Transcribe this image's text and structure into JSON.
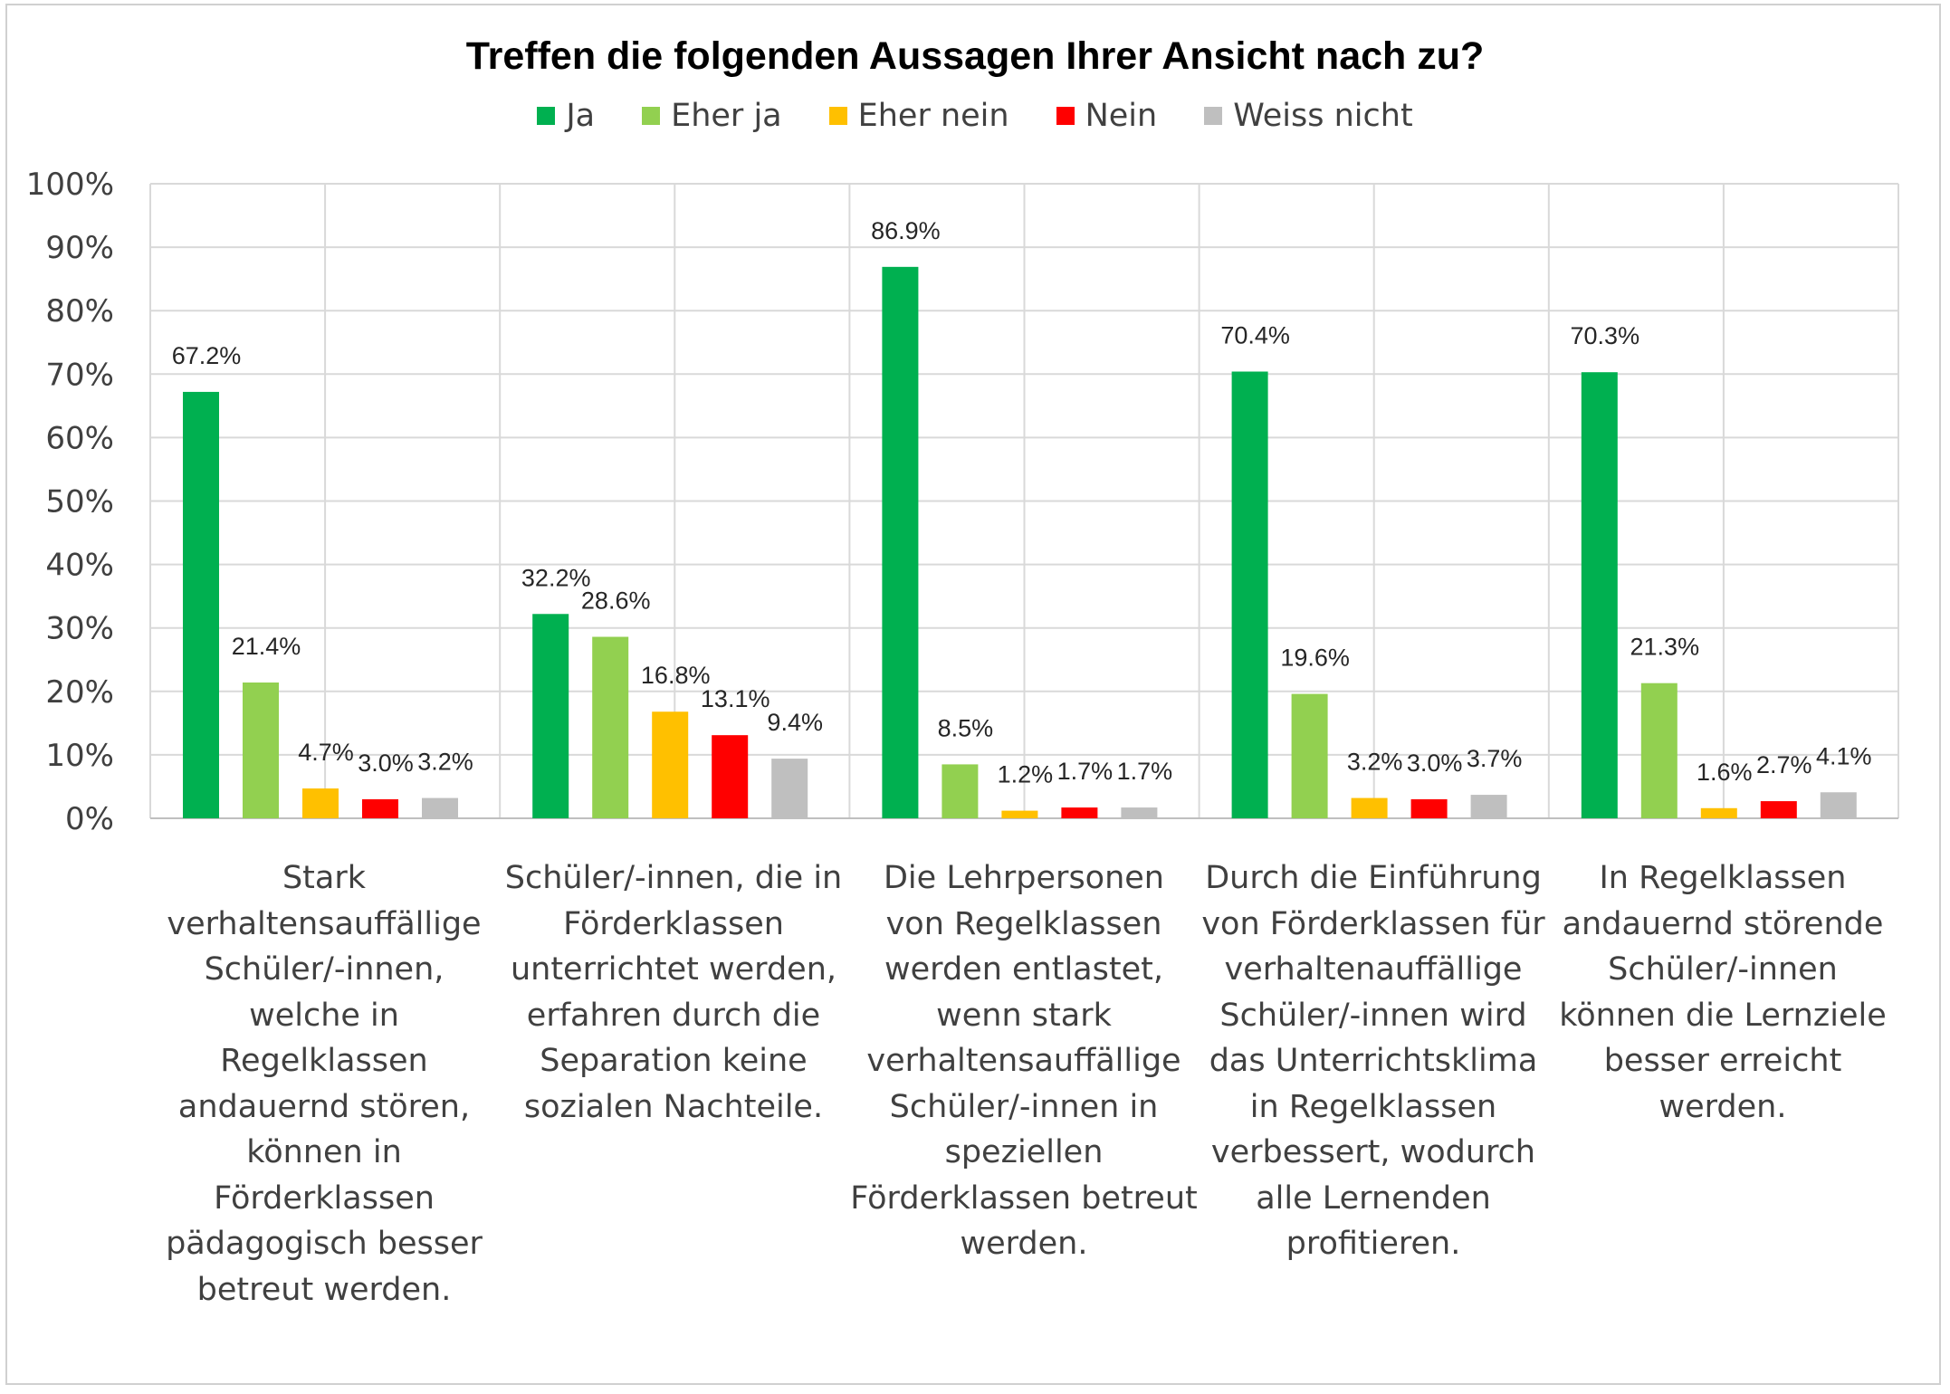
{
  "chart_data": {
    "type": "bar",
    "title": "Treffen die folgenden Aussagen Ihrer Ansicht nach zu?",
    "xlabel": "",
    "ylabel": "",
    "ylim": [
      0,
      100
    ],
    "yticks": [
      "0%",
      "10%",
      "20%",
      "30%",
      "40%",
      "50%",
      "60%",
      "70%",
      "80%",
      "90%",
      "100%"
    ],
    "grid": true,
    "legend_position": "top",
    "categories": [
      "Stark verhaltensauffällige Schüler/-innen, welche in Regelklassen andauernd stören, können in Förderklassen pädagogisch besser betreut werden.",
      "Schüler/-innen, die in Förderklassen unterrichtet werden, erfahren durch die Separation keine sozialen Nachteile.",
      "Die Lehrpersonen von Regelklassen werden entlastet, wenn stark verhaltensauffällige Schüler/-innen in speziellen Förderklassen betreut werden.",
      "Durch die Einführung von Förderklassen für verhaltenauffällige Schüler/-innen wird das Unterrichtsklima in Regelklassen verbessert, wodurch alle Lernenden profitieren.",
      "In Regelklassen andauernd störende Schüler/-innen können die Lernziele besser erreicht werden."
    ],
    "series": [
      {
        "name": "Ja",
        "color": "#00b050",
        "values": [
          67.2,
          32.2,
          86.9,
          70.4,
          70.3
        ],
        "labels": [
          "67.2%",
          "32.2%",
          "86.9%",
          "70.4%",
          "70.3%"
        ]
      },
      {
        "name": "Eher ja",
        "color": "#92d050",
        "values": [
          21.4,
          28.6,
          8.5,
          19.6,
          21.3
        ],
        "labels": [
          "21.4%",
          "28.6%",
          "8.5%",
          "19.6%",
          "21.3%"
        ]
      },
      {
        "name": "Eher nein",
        "color": "#ffc000",
        "values": [
          4.7,
          16.8,
          1.2,
          3.2,
          1.6
        ],
        "labels": [
          "4.7%",
          "16.8%",
          "1.2%",
          "3.2%",
          "1.6%"
        ]
      },
      {
        "name": "Nein",
        "color": "#ff0000",
        "values": [
          3.0,
          13.1,
          1.7,
          3.0,
          2.7
        ],
        "labels": [
          "3.0%",
          "13.1%",
          "1.7%",
          "3.0%",
          "2.7%"
        ]
      },
      {
        "name": "Weiss nicht",
        "color": "#bfbfbf",
        "values": [
          3.2,
          9.4,
          1.7,
          3.7,
          4.1
        ],
        "labels": [
          "3.2%",
          "9.4%",
          "1.7%",
          "3.7%",
          "4.1%"
        ]
      }
    ]
  }
}
